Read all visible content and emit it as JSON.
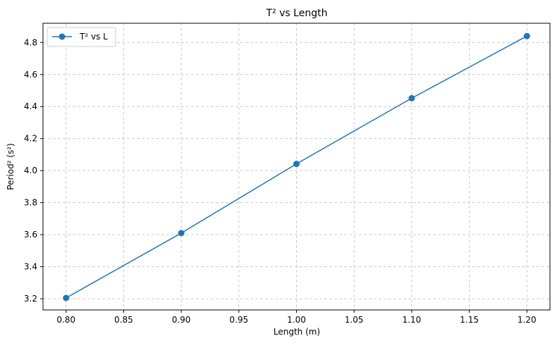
{
  "chart_data": {
    "type": "line",
    "title": "T² vs Length",
    "xlabel": "Length (m)",
    "ylabel": "Period² (s²)",
    "xlim": [
      0.78,
      1.22
    ],
    "ylim": [
      3.13,
      4.92
    ],
    "x_ticks": [
      0.8,
      0.85,
      0.9,
      0.95,
      1.0,
      1.05,
      1.1,
      1.15,
      1.2
    ],
    "x_tick_labels": [
      "0.80",
      "0.85",
      "0.90",
      "0.95",
      "1.00",
      "1.05",
      "1.10",
      "1.15",
      "1.20"
    ],
    "y_ticks": [
      3.2,
      3.4,
      3.6,
      3.8,
      4.0,
      4.2,
      4.4,
      4.6,
      4.8
    ],
    "y_tick_labels": [
      "3.2",
      "3.4",
      "3.6",
      "3.8",
      "4.0",
      "4.2",
      "4.4",
      "4.6",
      "4.8"
    ],
    "grid": true,
    "legend_position": "top-left",
    "series": [
      {
        "name": "T² vs L",
        "color": "#1f77b4",
        "marker": "circle",
        "x": [
          0.8,
          0.9,
          1.0,
          1.1,
          1.2
        ],
        "y": [
          3.205,
          3.61,
          4.042,
          4.452,
          4.84
        ]
      }
    ]
  }
}
